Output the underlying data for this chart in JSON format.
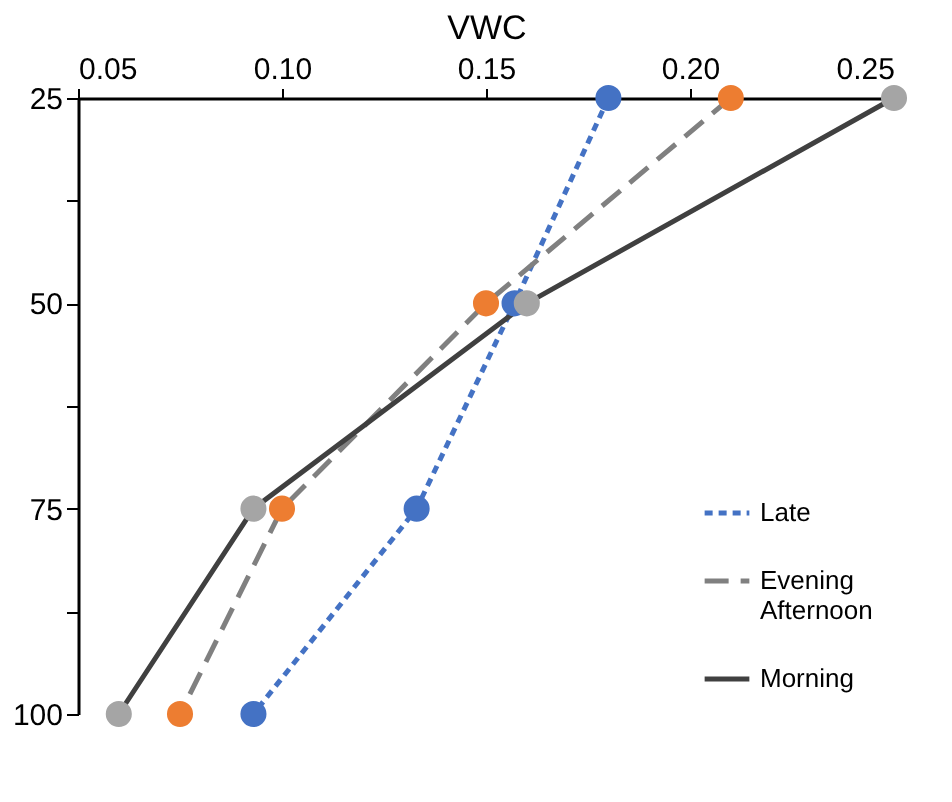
{
  "chart_data": {
    "type": "line",
    "xlabel": "VWC",
    "xlim": [
      0.05,
      0.25
    ],
    "xticks": [
      {
        "value": 0.05,
        "label": "0.05"
      },
      {
        "value": 0.1,
        "label": "0.10"
      },
      {
        "value": 0.15,
        "label": "0.15"
      },
      {
        "value": 0.2,
        "label": "0.20"
      },
      {
        "value": 0.25,
        "label": "0.25"
      }
    ],
    "ylim": [
      100,
      25
    ],
    "yticks": [
      25,
      {
        "value": 37.5,
        "label": null
      },
      50,
      {
        "value": 62.5,
        "label": null
      },
      75,
      {
        "value": 87.5,
        "label": null
      },
      100
    ],
    "series": [
      {
        "name": "Late",
        "color": "#4472c4",
        "colors": [
          "#4472c4",
          "#4472c4",
          "#4472c4",
          "#4472c4"
        ],
        "x": [
          0.18,
          0.157,
          0.133,
          0.093
        ],
        "values": [
          25,
          50,
          75,
          100
        ],
        "line_style": "dotted"
      },
      {
        "name": "Evening Afternoon",
        "color": "#808080",
        "colors": [
          "#ed7d31",
          "#ed7d31",
          "#ed7d31",
          "#ed7d31"
        ],
        "x": [
          0.21,
          0.15,
          0.1,
          0.075
        ],
        "values": [
          25,
          50,
          75,
          100
        ],
        "line_style": "dashed"
      },
      {
        "name": "Morning",
        "color": "#404040",
        "colors": [
          "#a5a5a5",
          "#a5a5a5",
          "#a5a5a5",
          "#a5a5a5"
        ],
        "x": [
          0.25,
          0.16,
          0.093,
          0.06
        ],
        "values": [
          25,
          50,
          75,
          100
        ],
        "line_style": "solid"
      }
    ],
    "marker": "circle",
    "legend": "right",
    "grid": false
  }
}
